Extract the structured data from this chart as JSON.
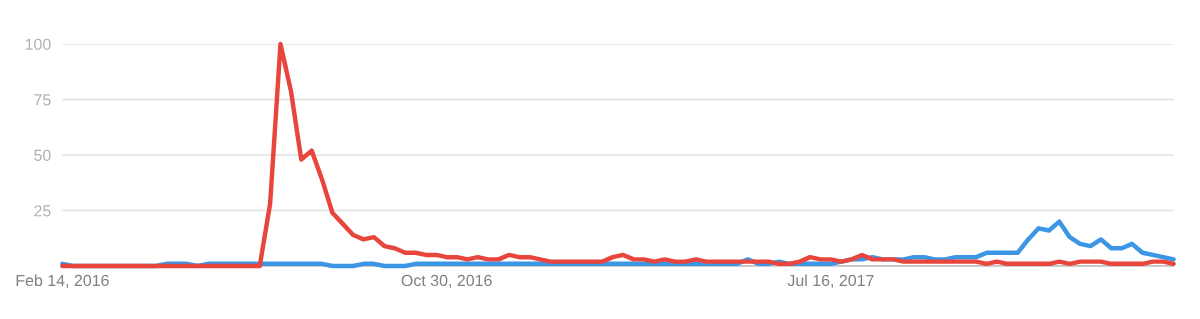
{
  "chart_data": {
    "type": "line",
    "x": [
      "2016-02-14",
      "2016-02-21",
      "2016-02-28",
      "2016-03-06",
      "2016-03-13",
      "2016-03-20",
      "2016-03-27",
      "2016-04-03",
      "2016-04-10",
      "2016-04-17",
      "2016-04-24",
      "2016-05-01",
      "2016-05-08",
      "2016-05-15",
      "2016-05-22",
      "2016-05-29",
      "2016-06-05",
      "2016-06-12",
      "2016-06-19",
      "2016-06-26",
      "2016-07-03",
      "2016-07-10",
      "2016-07-17",
      "2016-07-24",
      "2016-07-31",
      "2016-08-07",
      "2016-08-14",
      "2016-08-21",
      "2016-08-28",
      "2016-09-04",
      "2016-09-11",
      "2016-09-18",
      "2016-09-25",
      "2016-10-02",
      "2016-10-09",
      "2016-10-16",
      "2016-10-23",
      "2016-10-30",
      "2016-11-06",
      "2016-11-13",
      "2016-11-20",
      "2016-11-27",
      "2016-12-04",
      "2016-12-11",
      "2016-12-18",
      "2016-12-25",
      "2017-01-01",
      "2017-01-08",
      "2017-01-15",
      "2017-01-22",
      "2017-01-29",
      "2017-02-05",
      "2017-02-12",
      "2017-02-19",
      "2017-02-26",
      "2017-03-05",
      "2017-03-12",
      "2017-03-19",
      "2017-03-26",
      "2017-04-02",
      "2017-04-09",
      "2017-04-16",
      "2017-04-23",
      "2017-04-30",
      "2017-05-07",
      "2017-05-14",
      "2017-05-21",
      "2017-05-28",
      "2017-06-04",
      "2017-06-11",
      "2017-06-18",
      "2017-06-25",
      "2017-07-02",
      "2017-07-09",
      "2017-07-16",
      "2017-07-23",
      "2017-07-30",
      "2017-08-06",
      "2017-08-13",
      "2017-08-20",
      "2017-08-27",
      "2017-09-03",
      "2017-09-10",
      "2017-09-17",
      "2017-09-24",
      "2017-10-01",
      "2017-10-08",
      "2017-10-15",
      "2017-10-22",
      "2017-10-29",
      "2017-11-05",
      "2017-11-12",
      "2017-11-19",
      "2017-11-26",
      "2017-12-03",
      "2017-12-10",
      "2017-12-17",
      "2017-12-24",
      "2017-12-31",
      "2018-01-07",
      "2018-01-14",
      "2018-01-21",
      "2018-01-28",
      "2018-02-04",
      "2018-02-11",
      "2018-02-18",
      "2018-02-25",
      "2018-03-04"
    ],
    "series": [
      {
        "color": "#3d95e6",
        "values": [
          1,
          0,
          0,
          0,
          0,
          0,
          0,
          0,
          0,
          0,
          1,
          1,
          1,
          0,
          1,
          1,
          1,
          1,
          1,
          1,
          1,
          1,
          1,
          1,
          1,
          1,
          0,
          0,
          0,
          1,
          1,
          0,
          0,
          0,
          1,
          1,
          1,
          1,
          1,
          1,
          1,
          1,
          1,
          1,
          1,
          1,
          1,
          1,
          1,
          1,
          1,
          1,
          1,
          1,
          1,
          1,
          1,
          1,
          1,
          1,
          1,
          1,
          1,
          1,
          1,
          1,
          3,
          1,
          1,
          2,
          1,
          1,
          1,
          1,
          1,
          2,
          3,
          3,
          4,
          3,
          3,
          3,
          4,
          4,
          3,
          3,
          4,
          4,
          4,
          6,
          6,
          6,
          6,
          12,
          17,
          16,
          20,
          13,
          10,
          9,
          12,
          8,
          8,
          10,
          6,
          5,
          4,
          3
        ]
      },
      {
        "color": "#e8453c",
        "values": [
          0,
          0,
          0,
          0,
          0,
          0,
          0,
          0,
          0,
          0,
          0,
          0,
          0,
          0,
          0,
          0,
          0,
          0,
          0,
          0,
          28,
          100,
          79,
          48,
          52,
          39,
          24,
          19,
          14,
          12,
          13,
          9,
          8,
          6,
          6,
          5,
          5,
          4,
          4,
          3,
          4,
          3,
          3,
          5,
          4,
          4,
          3,
          2,
          2,
          2,
          2,
          2,
          2,
          4,
          5,
          3,
          3,
          2,
          3,
          2,
          2,
          3,
          2,
          2,
          2,
          2,
          2,
          2,
          2,
          1,
          1,
          2,
          4,
          3,
          3,
          2,
          3,
          5,
          3,
          3,
          3,
          2,
          2,
          2,
          2,
          2,
          2,
          2,
          2,
          1,
          2,
          1,
          1,
          1,
          1,
          1,
          2,
          1,
          2,
          2,
          2,
          1,
          1,
          1,
          1,
          2,
          2,
          1
        ]
      }
    ],
    "xlim": [
      "2016-02-14",
      "2018-03-04"
    ],
    "xticks": [
      {
        "value": "2016-02-14",
        "label": "Feb 14, 2016"
      },
      {
        "value": "2016-10-30",
        "label": "Oct 30, 2016"
      },
      {
        "value": "2017-07-16",
        "label": "Jul 16, 2017"
      }
    ],
    "ylim": [
      0,
      100
    ],
    "yticks": [
      {
        "value": 0,
        "label": null
      },
      25,
      50,
      75,
      100
    ],
    "tick_labels": "xy",
    "grid": "y",
    "legend": false,
    "marker": "none",
    "line_style": "solid"
  }
}
